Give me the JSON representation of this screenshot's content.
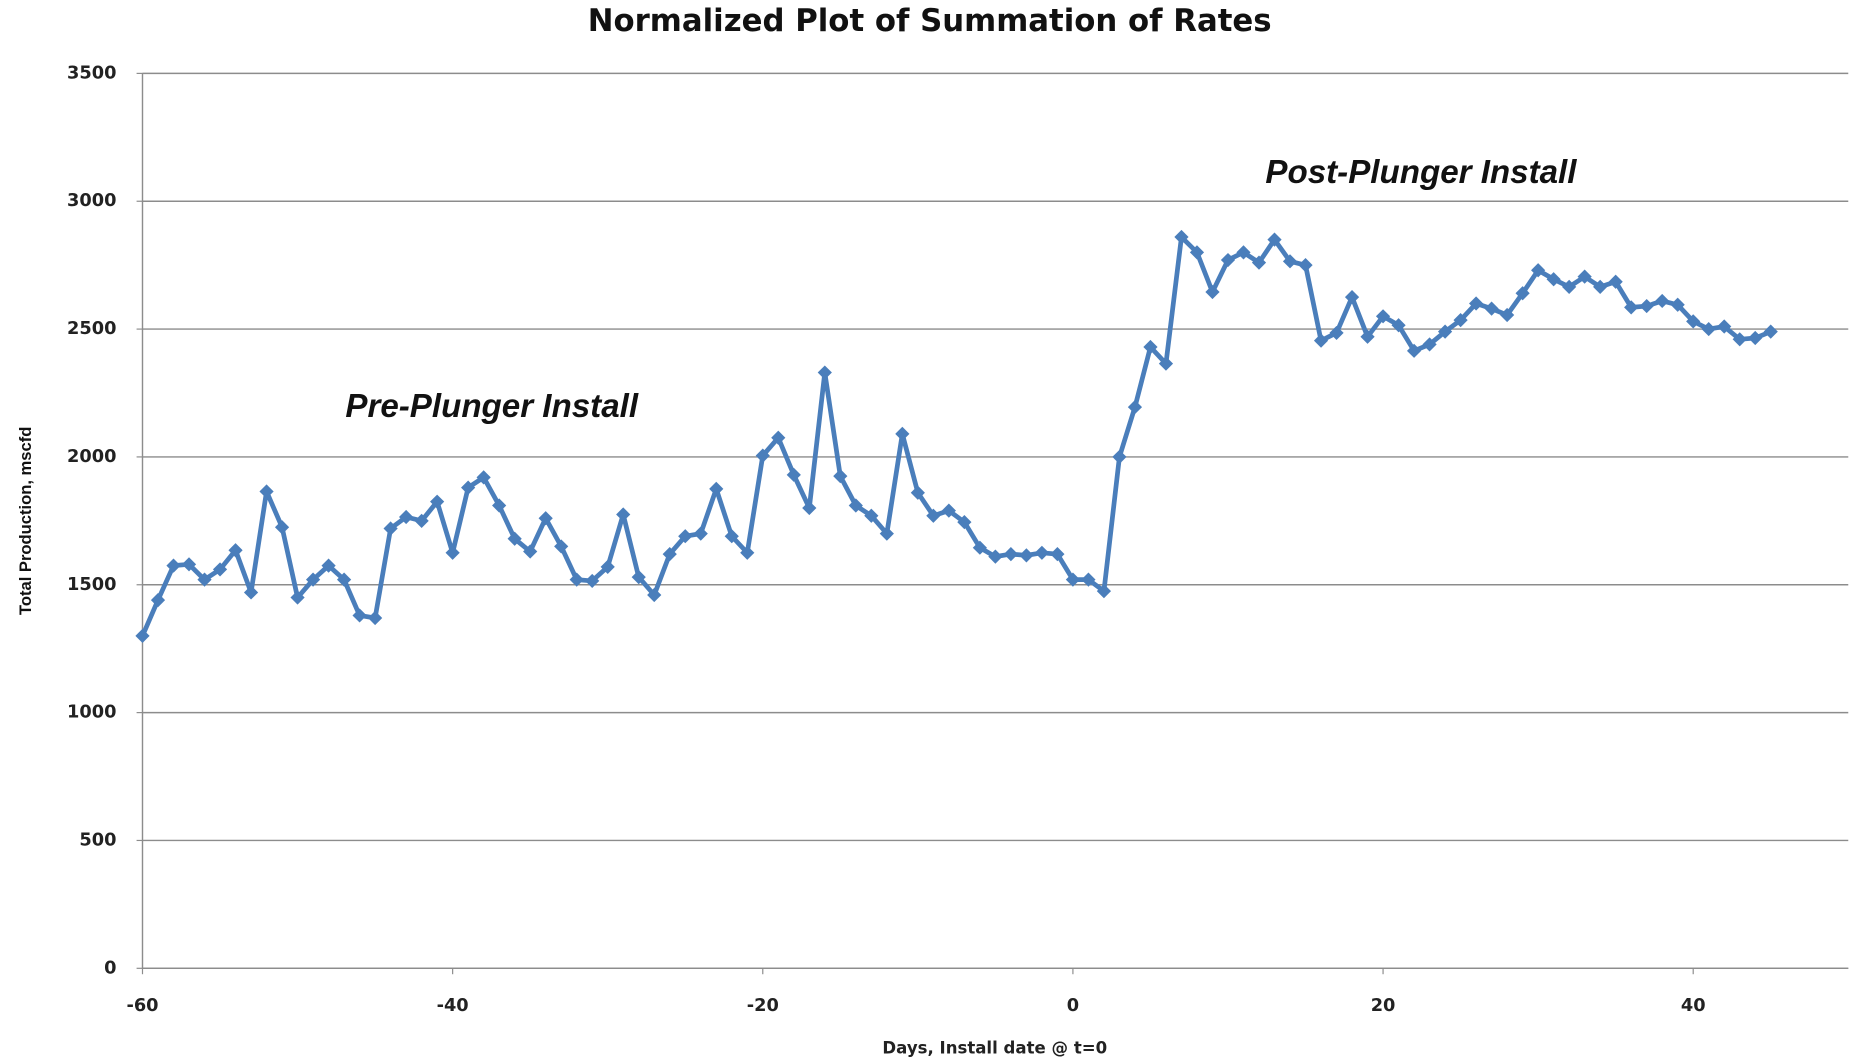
{
  "chart_data": {
    "type": "line",
    "title": "Normalized Plot of Summation of Rates",
    "x_label": "Days, Install date @ t=0",
    "y_label": "Total Production, mscfd",
    "annotations": [
      "Pre-Plunger Install",
      "Post-Plunger Install"
    ],
    "x": [
      -60,
      -59,
      -58,
      -57,
      -56,
      -55,
      -54,
      -53,
      -52,
      -51,
      -50,
      -49,
      -48,
      -47,
      -46,
      -45,
      -44,
      -43,
      -42,
      -41,
      -40,
      -39,
      -38,
      -37,
      -36,
      -35,
      -34,
      -33,
      -32,
      -31,
      -30,
      -29,
      -28,
      -27,
      -26,
      -25,
      -24,
      -23,
      -22,
      -21,
      -20,
      -19,
      -18,
      -17,
      -16,
      -15,
      -14,
      -13,
      -12,
      -11,
      -10,
      -9,
      -8,
      -7,
      -6,
      -5,
      -4,
      -3,
      -2,
      -1,
      0,
      1,
      2,
      3,
      4,
      5,
      6,
      7,
      8,
      9,
      10,
      11,
      12,
      13,
      14,
      15,
      16,
      17,
      18,
      19,
      20,
      21,
      22,
      23,
      24,
      25,
      26,
      27,
      28,
      29,
      30,
      31,
      32,
      33,
      34,
      35,
      36,
      37,
      38,
      39,
      40,
      41,
      42,
      43,
      44,
      45
    ],
    "series": [
      {
        "name": "Total Production",
        "color": "#4a7ebb",
        "values": [
          1300,
          1440,
          1575,
          1580,
          1520,
          1560,
          1635,
          1470,
          1865,
          1725,
          1450,
          1520,
          1575,
          1520,
          1380,
          1370,
          1720,
          1765,
          1750,
          1825,
          1625,
          1880,
          1920,
          1810,
          1680,
          1630,
          1760,
          1650,
          1520,
          1515,
          1570,
          1775,
          1530,
          1460,
          1620,
          1690,
          1700,
          1875,
          1690,
          1625,
          2005,
          2075,
          1930,
          1800,
          2330,
          1925,
          1810,
          1770,
          1700,
          2090,
          1860,
          1770,
          1790,
          1745,
          1645,
          1610,
          1620,
          1615,
          1625,
          1620,
          1520,
          1520,
          1475,
          2000,
          2195,
          2430,
          2365,
          2860,
          2800,
          2645,
          2770,
          2800,
          2760,
          2850,
          2765,
          2750,
          2455,
          2485,
          2625,
          2470,
          2550,
          2515,
          2415,
          2440,
          2490,
          2535,
          2600,
          2580,
          2555,
          2640,
          2730,
          2695,
          2665,
          2705,
          2665,
          2685,
          2585,
          2590,
          2610,
          2595,
          2530,
          2500,
          2510,
          2460,
          2465,
          2490
        ]
      }
    ],
    "xlim": [
      -60,
      50
    ],
    "xticks": [
      -60,
      -40,
      -20,
      0,
      20,
      40
    ],
    "ylim": [
      0,
      3500
    ],
    "yticks": [
      0,
      500,
      1000,
      1500,
      2000,
      2500,
      3000,
      3500
    ],
    "grid": true
  }
}
